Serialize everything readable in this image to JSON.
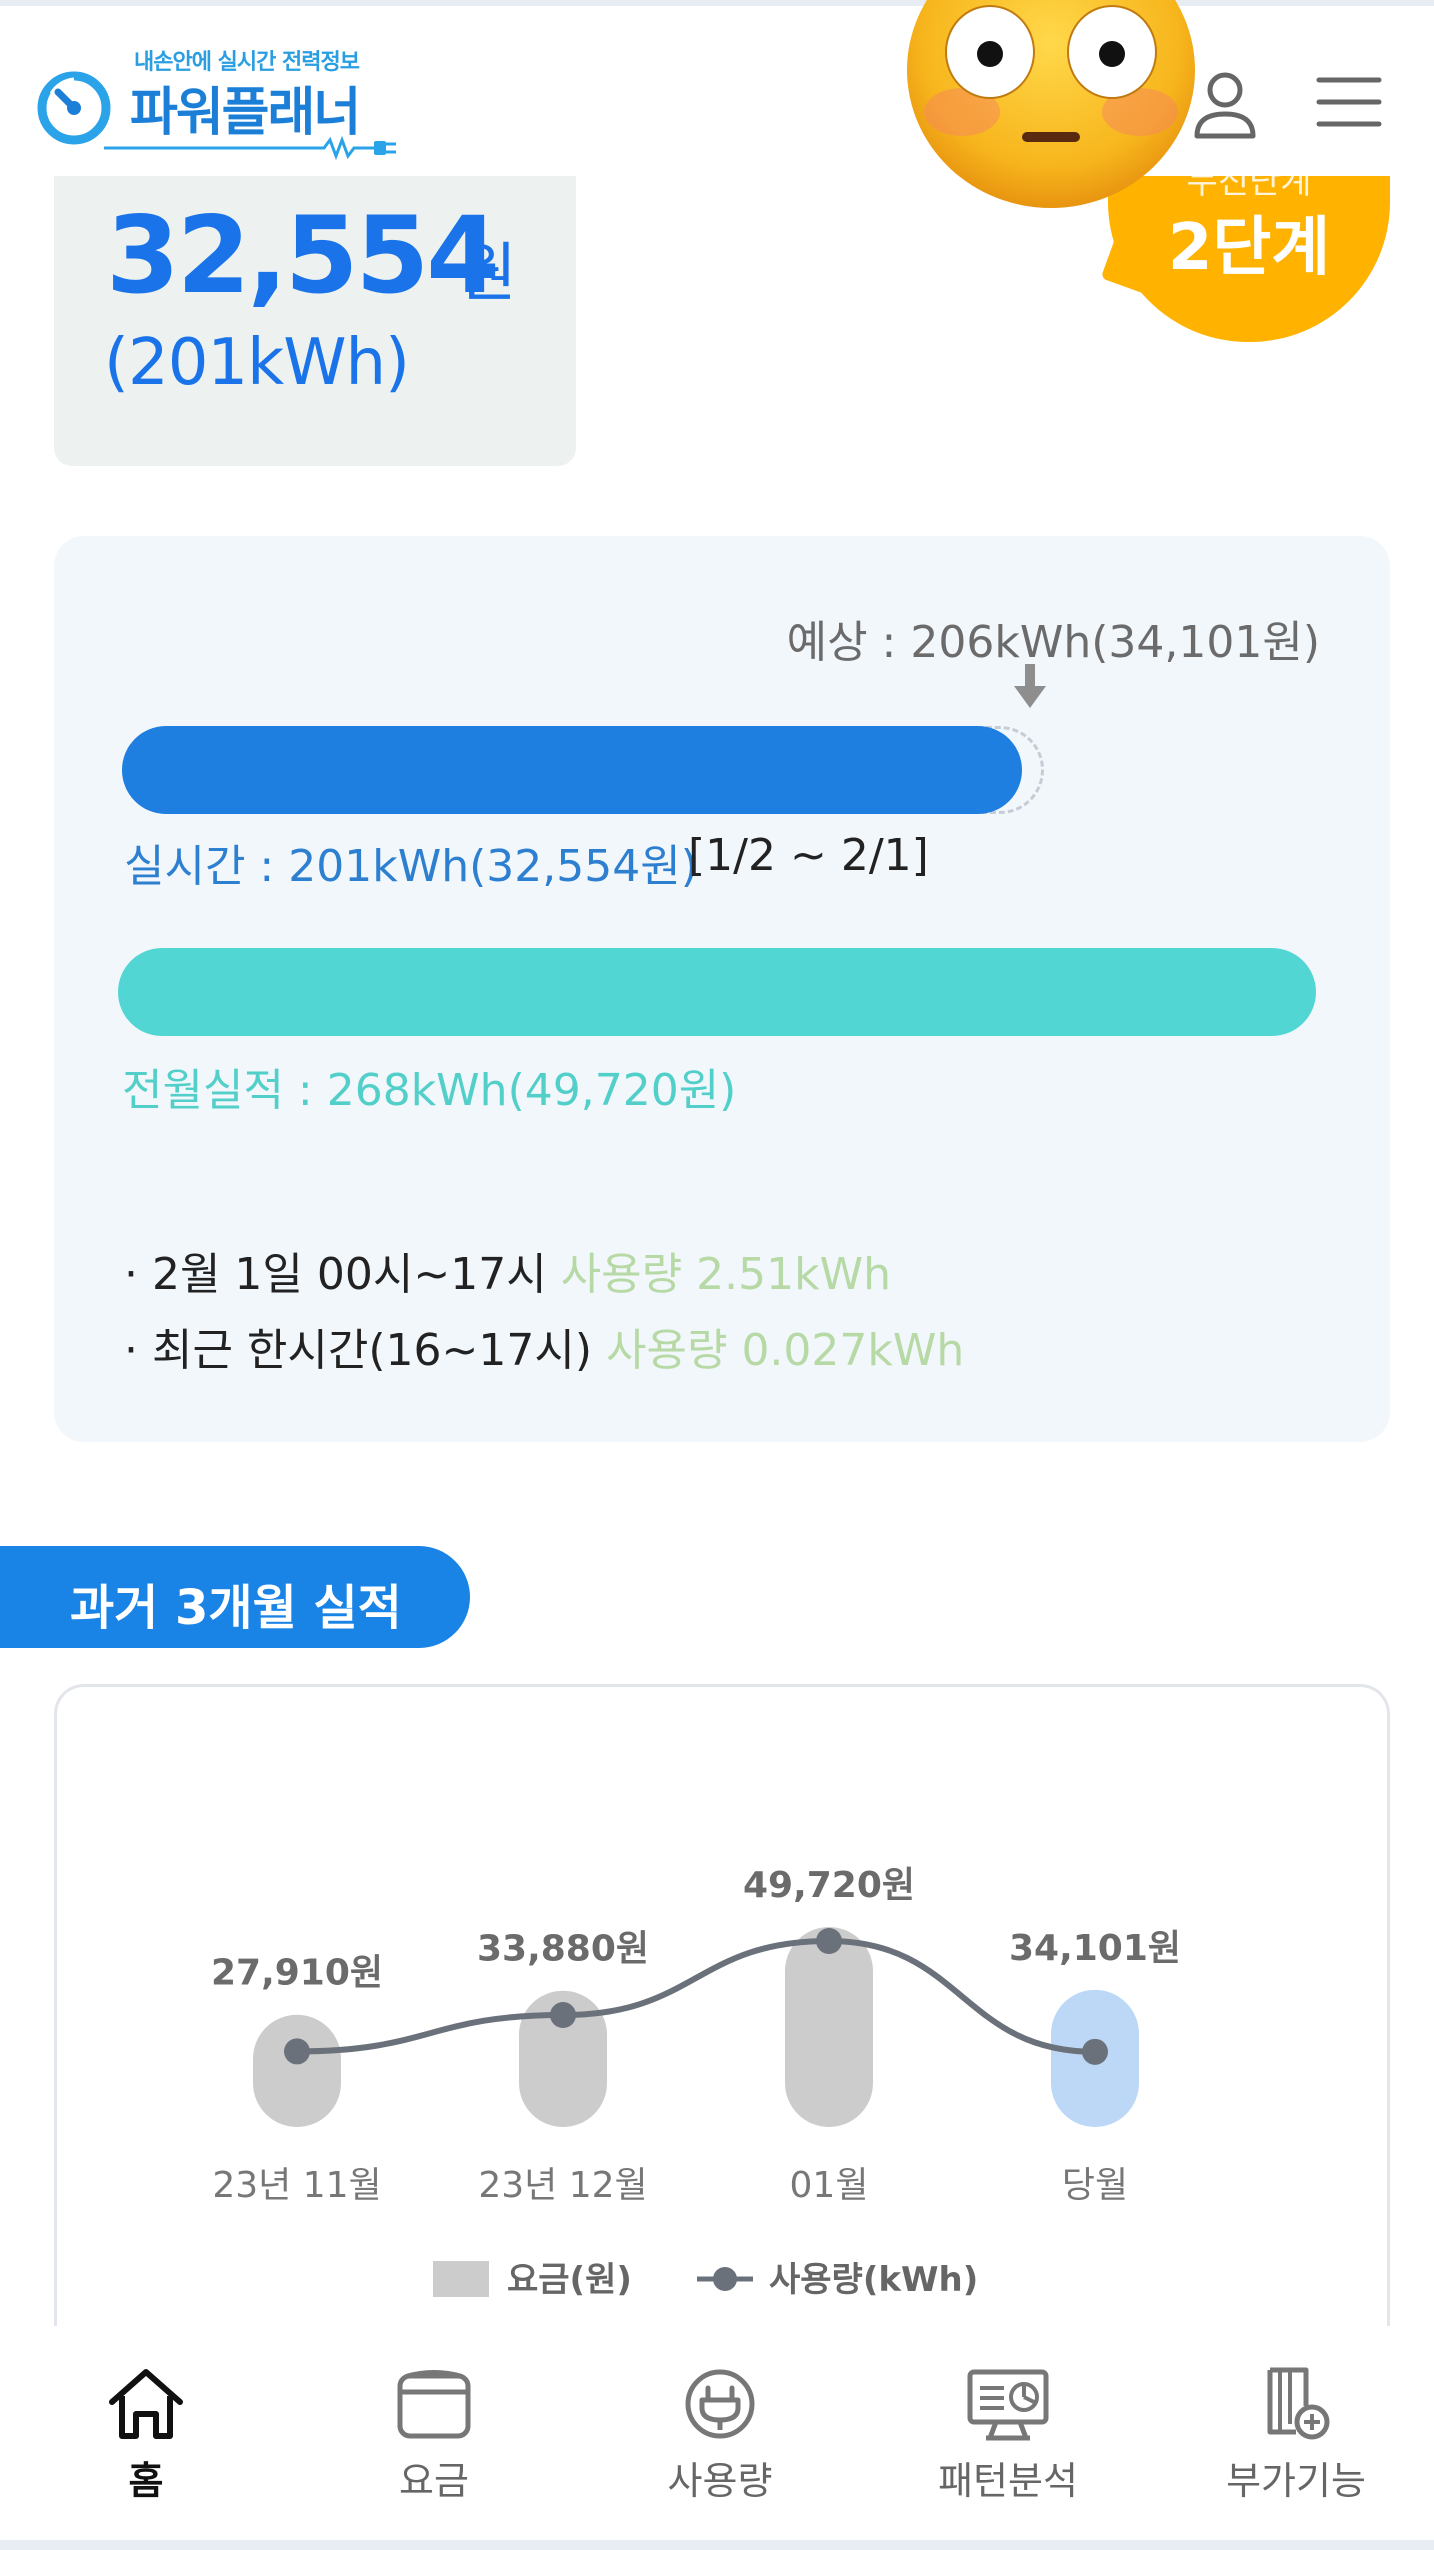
{
  "header": {
    "logo_sub": "내손안에 실시간 전력정보",
    "logo_main": "파워플래너",
    "icons": {
      "user": "user-icon",
      "menu": "hamburger-menu-icon"
    }
  },
  "summary": {
    "amount": "32,554",
    "unit": "원",
    "kwh": "(201kWh)"
  },
  "step_badge": {
    "top_text": "누진단계",
    "main_text": "2단계"
  },
  "usage": {
    "expected_label": "예상 : 206kWh(34,101원)",
    "realtime_label": "실시간 : 201kWh(32,554원)",
    "realtime_range": "[1/2 ~ 2/1]",
    "realtime_progress": 0.976,
    "previous_label": "전월실적 : 268kWh(49,720원)",
    "info": [
      {
        "prefix": "· 2월 1일 00시~17시 ",
        "highlight": "사용량 2.51kWh"
      },
      {
        "prefix": "· 최근 한시간(16~17시) ",
        "highlight": "사용량 0.027kWh"
      }
    ]
  },
  "past_section": {
    "title": "과거 3개월 실적"
  },
  "chart_data": {
    "type": "bar",
    "categories": [
      "23년 11월",
      "23년 12월",
      "01월",
      "당월"
    ],
    "bar_values": [
      27910,
      33880,
      49720,
      34101
    ],
    "bar_labels": [
      "27,910원",
      "33,880원",
      "49,720원",
      "34,101원"
    ],
    "line_values_kwh": [
      null,
      null,
      268,
      206
    ],
    "highlight_index": 3,
    "legend": [
      {
        "name": "요금(원)",
        "kind": "bar"
      },
      {
        "name": "사용량(kWh)",
        "kind": "line"
      }
    ],
    "colors": {
      "bar": "#cccccc",
      "bar_highlight": "#bcd8f6",
      "line": "#6b717b"
    }
  },
  "nav": [
    {
      "label": "홈",
      "icon": "home-icon",
      "active": true
    },
    {
      "label": "요금",
      "icon": "wallet-icon",
      "active": false
    },
    {
      "label": "사용량",
      "icon": "plug-icon",
      "active": false
    },
    {
      "label": "패턴분석",
      "icon": "monitor-chart-icon",
      "active": false
    },
    {
      "label": "부가기능",
      "icon": "document-plus-icon",
      "active": false
    }
  ]
}
